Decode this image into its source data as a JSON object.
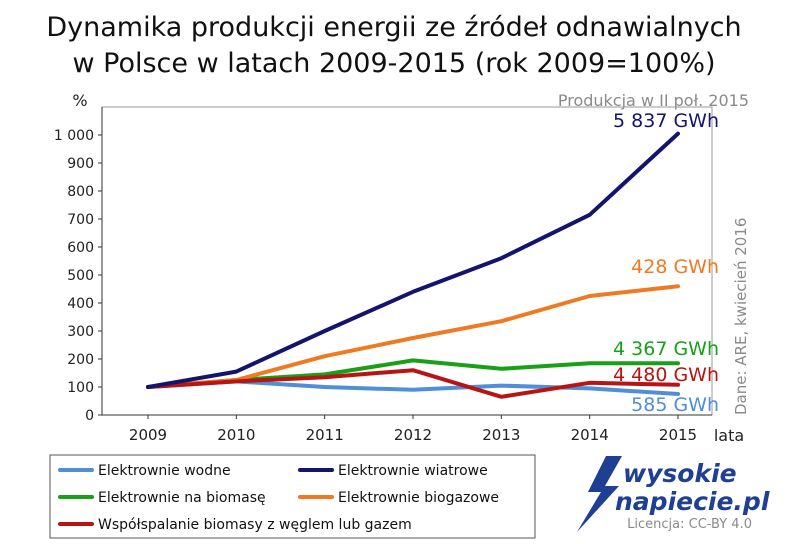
{
  "chart_data": {
    "type": "line",
    "title": [
      "Dynamika produkcji energii ze źródeł odnawialnych",
      "w Polsce w latach 2009-2015 (rok 2009=100%)"
    ],
    "subtitle": "Produkcja w II poł. 2015",
    "ylabel": "%",
    "xlabel": "lata",
    "categories": [
      "2009",
      "2010",
      "2011",
      "2012",
      "2013",
      "2014",
      "2015"
    ],
    "ylim": [
      0,
      1000
    ],
    "yticks": [
      0,
      100,
      200,
      300,
      400,
      500,
      600,
      700,
      800,
      900,
      1000
    ],
    "ytick_labels": [
      "0",
      "100",
      "200",
      "300",
      "400",
      "500",
      "600",
      "700",
      "800",
      "900",
      "1 000"
    ],
    "grid": false,
    "legend_position": "bottom-left",
    "series": [
      {
        "name": "Elektrownie wodne",
        "color": "#4f8ed8",
        "values": [
          100,
          120,
          100,
          90,
          105,
          95,
          75
        ],
        "end_label": "585 GWh"
      },
      {
        "name": "Elektrownie wiatrowe",
        "color": "#14146e",
        "values": [
          100,
          155,
          300,
          440,
          560,
          715,
          1005
        ],
        "end_label": "5 837 GWh"
      },
      {
        "name": "Elektrownie na biomasę",
        "color": "#18a018",
        "values": [
          100,
          125,
          145,
          195,
          165,
          185,
          185
        ],
        "end_label": "4 367 GWh"
      },
      {
        "name": "Elektrownie biogazowe",
        "color": "#f07a22",
        "values": [
          100,
          125,
          210,
          275,
          335,
          425,
          460
        ],
        "end_label": "428 GWh"
      },
      {
        "name": "Współspalanie biomasy z węglem lub gazem",
        "color": "#b81414",
        "values": [
          100,
          120,
          135,
          160,
          65,
          115,
          108
        ],
        "end_label": "4 480 GWh"
      }
    ],
    "source_note": "Dane: ARE, kwiecień 2016"
  },
  "logo": {
    "line1": "wysokie",
    "line2": "napiecie.pl"
  },
  "license": "Licencja: CC-BY 4.0"
}
